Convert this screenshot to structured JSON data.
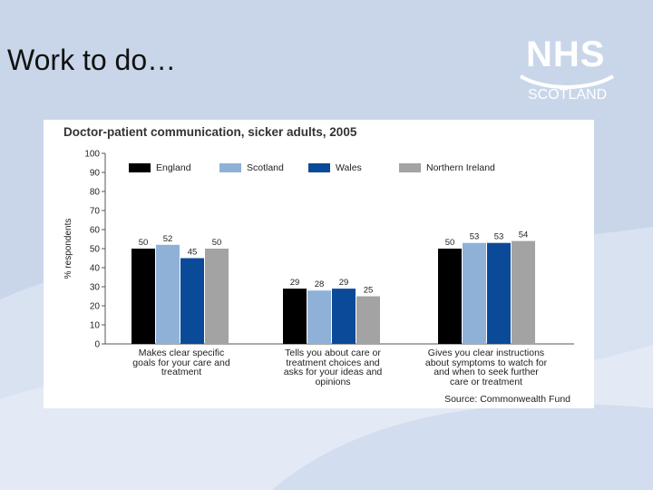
{
  "slide": {
    "title": "Work to do…"
  },
  "logo": {
    "nhs": "NHS",
    "scotland": "SCOTLAND"
  },
  "colors": {
    "background": "#c9d6ea",
    "england": "#000000",
    "scotland": "#8fb1d8",
    "wales": "#0b4a99",
    "northern_ireland": "#a3a3a3"
  },
  "chart_data": {
    "type": "bar",
    "title": "Doctor-patient communication, sicker adults, 2005",
    "ylabel": "% respondents",
    "xlabel": "",
    "ylim": [
      0,
      100
    ],
    "yticks": [
      0,
      10,
      20,
      30,
      40,
      50,
      60,
      70,
      80,
      90,
      100
    ],
    "categories": [
      "Makes clear specific\ngoals for your care and\ntreatment",
      "Tells you about care or\ntreatment choices and\nasks for your ideas and\nopinions",
      "Gives you clear instructions\nabout symptoms to watch for\nand when to seek further\ncare or treatment"
    ],
    "series": [
      {
        "name": "England",
        "color": "#000000",
        "values": [
          50,
          29,
          50
        ]
      },
      {
        "name": "Scotland",
        "color": "#8fb1d8",
        "values": [
          52,
          28,
          53
        ]
      },
      {
        "name": "Wales",
        "color": "#0b4a99",
        "values": [
          45,
          29,
          53
        ]
      },
      {
        "name": "Northern Ireland",
        "color": "#a3a3a3",
        "values": [
          50,
          25,
          54
        ]
      }
    ],
    "source": "Source: Commonwealth Fund",
    "legend_position": "top"
  }
}
